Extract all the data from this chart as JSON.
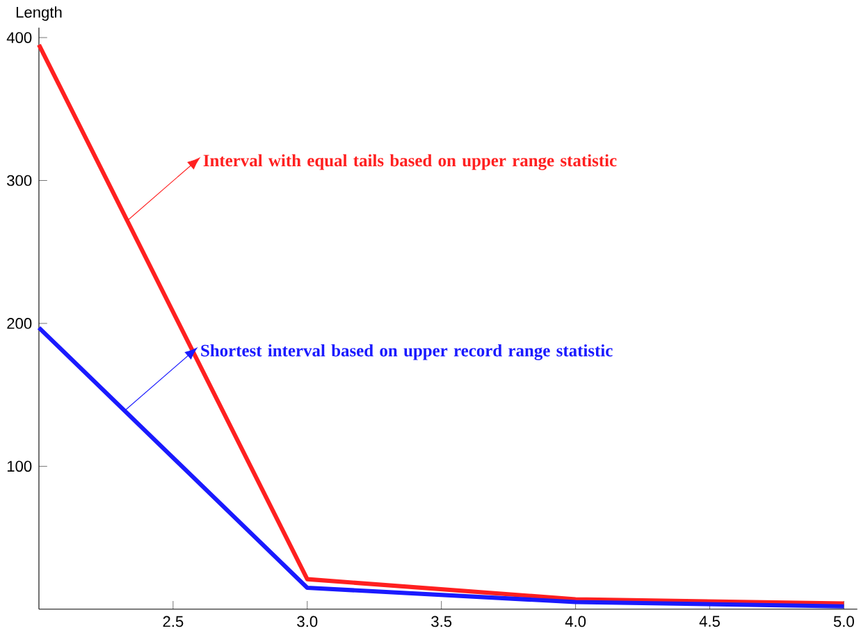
{
  "chart_data": {
    "type": "line",
    "ylabel": "Length",
    "x": [
      2,
      3,
      4,
      5
    ],
    "series": [
      {
        "color": "#ff2020",
        "values": [
          395,
          21,
          7,
          4
        ]
      },
      {
        "color": "#1a1aff",
        "values": [
          197,
          15,
          5,
          2
        ]
      }
    ],
    "xlim": [
      2,
      5.05
    ],
    "ylim": [
      0,
      407
    ],
    "xticks": [
      2.5,
      {
        "value": 3,
        "label": "3.0"
      },
      3.5,
      {
        "value": 4,
        "label": "4.0"
      },
      4.5,
      {
        "value": 5,
        "label": "5.0"
      }
    ],
    "yticks": [
      100,
      200,
      300,
      400
    ],
    "marker": "none",
    "line_style": "solid",
    "annotations": [
      {
        "text": "Interval with equal tails based on upper range statistic",
        "x": 2.33,
        "y": 272
      },
      {
        "text": "Shortest interval based on upper record range statistic",
        "x": 2.32,
        "y": 139
      }
    ]
  }
}
